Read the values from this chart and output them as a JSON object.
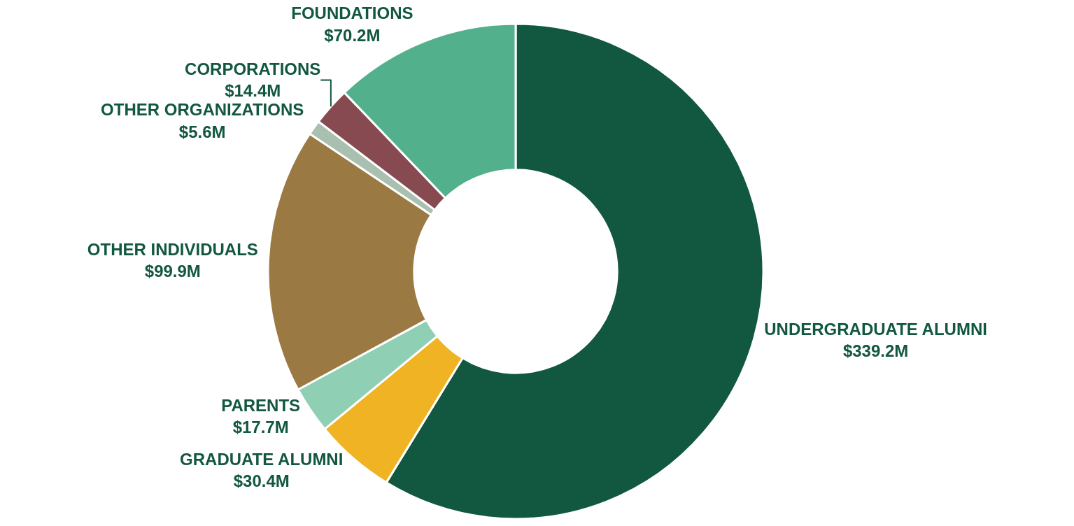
{
  "chart_data": {
    "type": "donut",
    "categories": [
      "UNDERGRADUATE ALUMNI",
      "GRADUATE ALUMNI",
      "PARENTS",
      "OTHER INDIVIDUALS",
      "OTHER ORGANIZATIONS",
      "CORPORATIONS",
      "FOUNDATIONS"
    ],
    "values": [
      339.2,
      30.4,
      17.7,
      99.9,
      5.6,
      14.4,
      70.2
    ],
    "value_labels": [
      "$339.2M",
      "$30.4M",
      "$17.7M",
      "$99.9M",
      "$5.6M",
      "$14.4M",
      "$70.2M"
    ],
    "colors": [
      "#12573f",
      "#efb324",
      "#8fcfb3",
      "#9a7a42",
      "#a9bfb0",
      "#874a50",
      "#52b08c"
    ],
    "legend": false
  }
}
